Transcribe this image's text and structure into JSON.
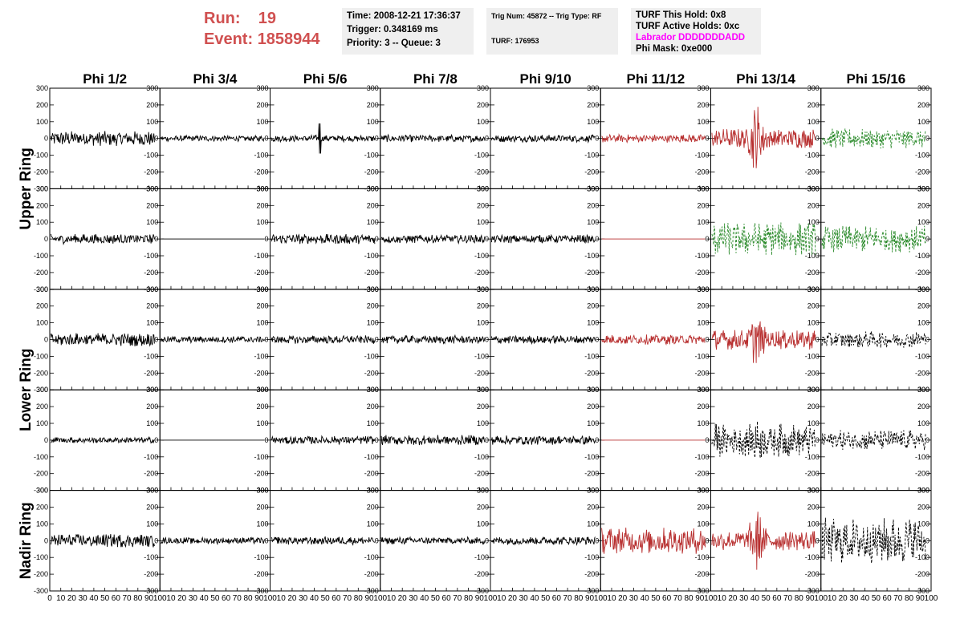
{
  "header": {
    "run_label": "Run:",
    "run_value": "19",
    "event_label": "Event:",
    "event_value": "1858944"
  },
  "info_time": {
    "time": "Time: 2008-12-21 17:36:37",
    "trigger": "Trigger: 0.348169 ms",
    "priority": "Priority: 3 -- Queue: 3"
  },
  "info_trig": {
    "trig": "Trig Num: 45872 -- Trig Type: RF",
    "turf": "TURF: 176953"
  },
  "info_turf": {
    "this_hold": "TURF This Hold: 0x8",
    "active_holds": "TURF Active Holds: 0xc",
    "labrador": "Labrador DDDDDDDADD",
    "phi_mask": "Phi Mask: 0xe000"
  },
  "colors": {
    "red": "#b83030",
    "green": "#2a8a2a",
    "black": "#000000",
    "magenta": "#ff00ff",
    "header_red": "#d05050"
  },
  "chart_data": {
    "type": "line",
    "columns": [
      "Phi 1/2",
      "Phi 3/4",
      "Phi 5/6",
      "Phi 7/8",
      "Phi 9/10",
      "Phi 11/12",
      "Phi 13/14",
      "Phi 15/16"
    ],
    "ring_labels": [
      "Upper Ring",
      "Lower Ring",
      "Nadir Ring"
    ],
    "ylim": [
      -300,
      300
    ],
    "xlim": [
      0,
      100
    ],
    "y_ticks": [
      "300",
      "200",
      "100",
      "0",
      "-100",
      "-200",
      "-300"
    ],
    "x_ticks": [
      "0",
      "10",
      "20",
      "30",
      "40",
      "50",
      "60",
      "70",
      "80",
      "90",
      "100"
    ],
    "panels": [
      [
        {
          "amp": 45,
          "color": "black",
          "style": "solid"
        },
        {
          "amp": 18,
          "color": "black",
          "style": "solid"
        },
        {
          "amp": 20,
          "color": "black",
          "style": "solid",
          "spike": 45
        },
        {
          "amp": 22,
          "color": "black",
          "style": "solid"
        },
        {
          "amp": 22,
          "color": "black",
          "style": "solid"
        },
        {
          "amp": 25,
          "color": "red",
          "style": "solid"
        },
        {
          "amp": 60,
          "color": "red",
          "style": "solid",
          "burst": 300
        },
        {
          "amp": 60,
          "color": "green",
          "style": "dashed"
        }
      ],
      [
        {
          "amp": 30,
          "color": "black",
          "style": "solid"
        },
        {
          "amp": 0,
          "color": "black",
          "style": "solid"
        },
        {
          "amp": 30,
          "color": "black",
          "style": "solid"
        },
        {
          "amp": 25,
          "color": "black",
          "style": "solid"
        },
        {
          "amp": 25,
          "color": "black",
          "style": "solid"
        },
        {
          "amp": 0,
          "color": "red",
          "style": "solid"
        },
        {
          "amp": 100,
          "color": "green",
          "style": "dashed",
          "burst": 150
        },
        {
          "amp": 80,
          "color": "green",
          "style": "dashed"
        }
      ],
      [
        {
          "amp": 40,
          "color": "black",
          "style": "solid"
        },
        {
          "amp": 20,
          "color": "black",
          "style": "solid"
        },
        {
          "amp": 25,
          "color": "black",
          "style": "solid"
        },
        {
          "amp": 25,
          "color": "black",
          "style": "solid"
        },
        {
          "amp": 25,
          "color": "black",
          "style": "solid"
        },
        {
          "amp": 30,
          "color": "red",
          "style": "solid"
        },
        {
          "amp": 60,
          "color": "red",
          "style": "solid",
          "burst": 240
        },
        {
          "amp": 50,
          "color": "black",
          "style": "dashed"
        }
      ],
      [
        {
          "amp": 18,
          "color": "black",
          "style": "solid"
        },
        {
          "amp": 0,
          "color": "black",
          "style": "solid"
        },
        {
          "amp": 25,
          "color": "black",
          "style": "solid"
        },
        {
          "amp": 30,
          "color": "black",
          "style": "solid"
        },
        {
          "amp": 28,
          "color": "black",
          "style": "solid"
        },
        {
          "amp": 0,
          "color": "red",
          "style": "solid"
        },
        {
          "amp": 100,
          "color": "black",
          "style": "dashed",
          "burst": 230
        },
        {
          "amp": 60,
          "color": "black",
          "style": "dashed"
        }
      ],
      [
        {
          "amp": 40,
          "color": "black",
          "style": "solid"
        },
        {
          "amp": 20,
          "color": "black",
          "style": "solid"
        },
        {
          "amp": 25,
          "color": "black",
          "style": "solid"
        },
        {
          "amp": 22,
          "color": "black",
          "style": "solid"
        },
        {
          "amp": 25,
          "color": "black",
          "style": "solid"
        },
        {
          "amp": 80,
          "color": "red",
          "style": "solid"
        },
        {
          "amp": 60,
          "color": "red",
          "style": "solid",
          "burst": 280
        },
        {
          "amp": 140,
          "color": "black",
          "style": "dashed"
        }
      ]
    ]
  }
}
